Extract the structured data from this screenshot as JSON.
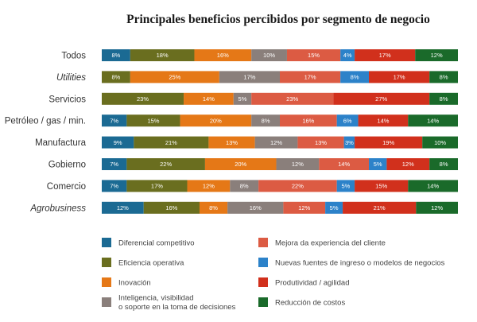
{
  "chart_data": {
    "type": "bar",
    "stacked": true,
    "orientation": "horizontal",
    "title": "Principales beneficios percibidos por segmento de negocio",
    "categories": [
      "Todos",
      "Utilities",
      "Servicios",
      "Petróleo / gas / min.",
      "Manufactura",
      "Gobierno",
      "Comercio",
      "Agrobusiness"
    ],
    "italic_categories": [
      "Utilities",
      "Agrobusiness"
    ],
    "value_suffix": "%",
    "series": [
      {
        "name": "Diferencial competitivo",
        "color": "#1b6a93",
        "values": [
          8,
          0,
          0,
          7,
          9,
          7,
          7,
          12
        ]
      },
      {
        "name": "Eficiencia operativa",
        "color": "#6a6e1f",
        "values": [
          18,
          8,
          23,
          15,
          21,
          22,
          17,
          16
        ]
      },
      {
        "name": "Inovación",
        "color": "#e57817",
        "values": [
          16,
          25,
          14,
          20,
          13,
          20,
          12,
          8
        ]
      },
      {
        "name": "Inteligencia, visibilidad o soporte en la toma de decisiones",
        "color": "#8a7f7b",
        "values": [
          10,
          17,
          5,
          8,
          12,
          12,
          8,
          16
        ]
      },
      {
        "name": "Mejora da experiencia del cliente",
        "color": "#dc5b43",
        "values": [
          15,
          17,
          23,
          16,
          13,
          14,
          22,
          12
        ]
      },
      {
        "name": "Nuevas fuentes de ingreso o modelos de negocios",
        "color": "#2c82c9",
        "values": [
          4,
          8,
          0,
          6,
          3,
          5,
          5,
          5
        ]
      },
      {
        "name": "Produtividad / agilidad",
        "color": "#d1301c",
        "values": [
          17,
          17,
          27,
          14,
          19,
          12,
          15,
          21
        ]
      },
      {
        "name": "Reducción de costos",
        "color": "#1a6a2a",
        "values": [
          12,
          8,
          8,
          14,
          10,
          8,
          14,
          12
        ]
      }
    ],
    "legend": {
      "placement": "bottom",
      "items": [
        {
          "name": "Diferencial competitivo",
          "color": "#1b6a93",
          "lines": [
            "Diferencial competitivo"
          ]
        },
        {
          "name": "Eficiencia operativa",
          "color": "#6a6e1f",
          "lines": [
            "Eficiencia operativa"
          ]
        },
        {
          "name": "Inovación",
          "color": "#e57817",
          "lines": [
            "Inovación"
          ]
        },
        {
          "name": "Inteligencia, visibilidad o soporte en la toma de decisiones",
          "color": "#8a7f7b",
          "lines": [
            "Inteligencia, visibilidad",
            "o soporte en la toma de decisiones"
          ]
        },
        {
          "name": "Mejora da experiencia del cliente",
          "color": "#dc5b43",
          "lines": [
            "Mejora da experiencia del cliente"
          ]
        },
        {
          "name": "Nuevas fuentes de ingreso o modelos de negocios",
          "color": "#2c82c9",
          "lines": [
            "Nuevas fuentes de ingreso o modelos de negocios"
          ]
        },
        {
          "name": "Produtividad / agilidad",
          "color": "#d1301c",
          "lines": [
            "Produtividad / agilidad"
          ]
        },
        {
          "name": "Reducción de costos",
          "color": "#1a6a2a",
          "lines": [
            "Reducción de costos"
          ]
        }
      ]
    }
  }
}
